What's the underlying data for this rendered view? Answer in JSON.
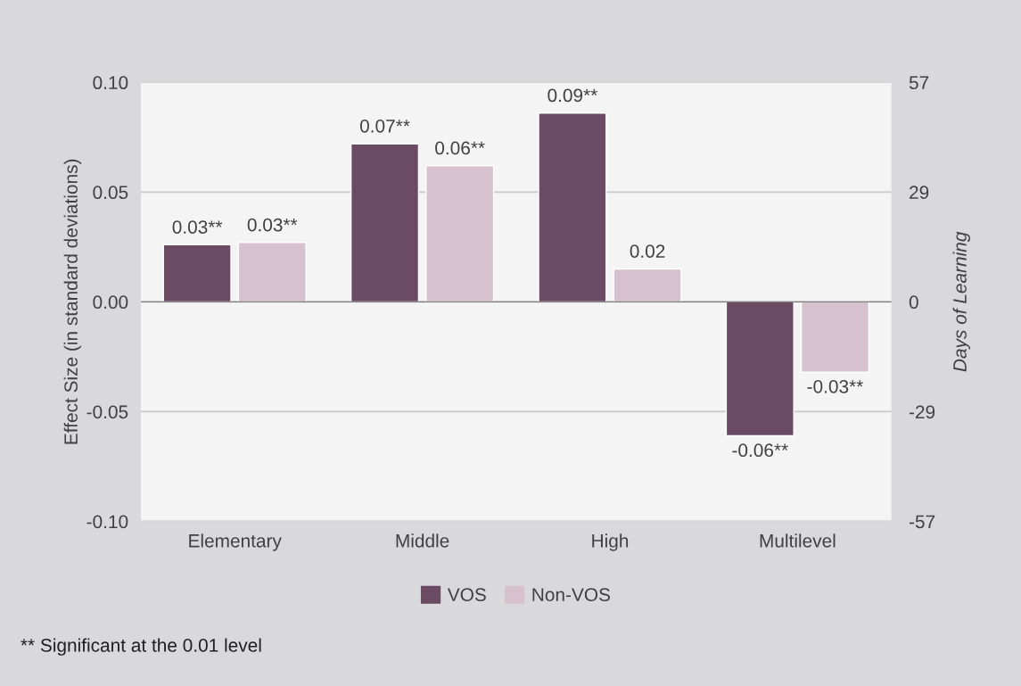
{
  "chart_data": {
    "type": "bar",
    "categories": [
      "Elementary",
      "Middle",
      "High",
      "Multilevel"
    ],
    "series": [
      {
        "name": "VOS",
        "color": "#6b4a63",
        "values": [
          0.026,
          0.072,
          0.086,
          -0.061
        ],
        "value_labels": [
          "0.03**",
          "0.07**",
          "0.09**",
          "-0.06**"
        ]
      },
      {
        "name": "Non-VOS",
        "color": "#d7c1cf",
        "values": [
          0.027,
          0.062,
          0.015,
          -0.032
        ],
        "value_labels": [
          "0.03**",
          "0.06**",
          "0.02",
          "-0.03**"
        ]
      }
    ],
    "ylabel": "Effect Size (in standard deviations)",
    "y2label": "Days of Learning",
    "ylim": [
      -0.1,
      0.1
    ],
    "yticks": [
      {
        "value": -0.1,
        "label": "-0.10"
      },
      {
        "value": -0.05,
        "label": "-0.05"
      },
      {
        "value": 0,
        "label": "0.00"
      },
      {
        "value": 0.05,
        "label": "0.05"
      },
      {
        "value": 0.1,
        "label": "0.10"
      }
    ],
    "y2lim": [
      -57,
      57
    ],
    "y2ticks": [
      -57,
      {
        "value": -28.5,
        "label": "-29"
      },
      0,
      {
        "value": 28.5,
        "label": "29"
      },
      57
    ],
    "grid": "y",
    "legend": "bottom",
    "annotations": [
      "** Significant at the 0.01 level"
    ]
  }
}
